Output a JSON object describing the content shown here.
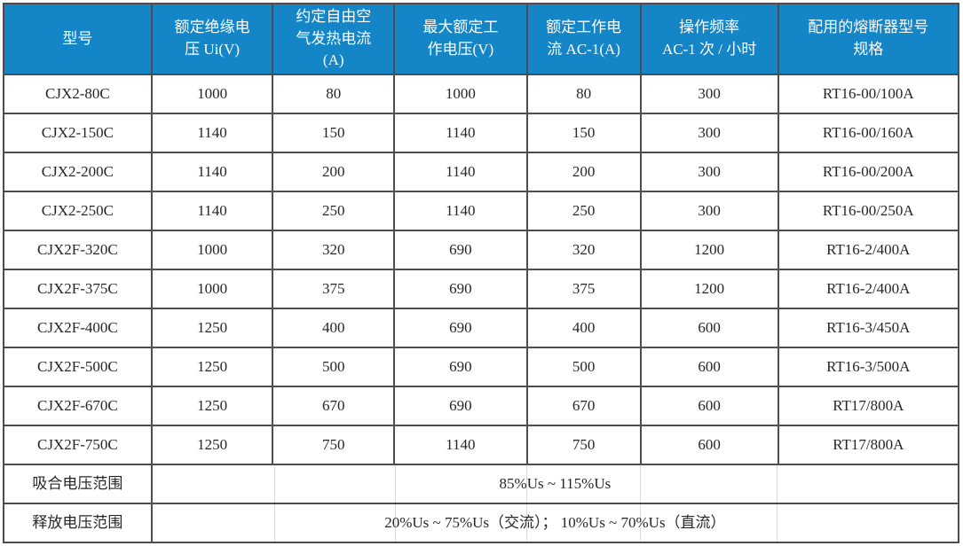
{
  "table": {
    "columns": [
      {
        "label": "型号"
      },
      {
        "label": "额定绝缘电\n压 Ui(V)"
      },
      {
        "label": "约定自由空\n气发热电流\n(A)"
      },
      {
        "label": "最大额定工\n作电压(V)"
      },
      {
        "label": "额定工作电\n流 AC-1(A)"
      },
      {
        "label": "操作频率\nAC-1 次 / 小时"
      },
      {
        "label": "配用的熔断器型号\n规格"
      }
    ],
    "rows": [
      [
        "CJX2-80C",
        "1000",
        "80",
        "1000",
        "80",
        "300",
        "RT16-00/100A"
      ],
      [
        "CJX2-150C",
        "1140",
        "150",
        "1140",
        "150",
        "300",
        "RT16-00/160A"
      ],
      [
        "CJX2-200C",
        "1140",
        "200",
        "1140",
        "200",
        "300",
        "RT16-00/200A"
      ],
      [
        "CJX2-250C",
        "1140",
        "250",
        "1140",
        "250",
        "300",
        "RT16-00/250A"
      ],
      [
        "CJX2F-320C",
        "1000",
        "320",
        "690",
        "320",
        "1200",
        "RT16-2/400A"
      ],
      [
        "CJX2F-375C",
        "1000",
        "375",
        "690",
        "375",
        "1200",
        "RT16-2/400A"
      ],
      [
        "CJX2F-400C",
        "1250",
        "400",
        "690",
        "400",
        "600",
        "RT16-3/450A"
      ],
      [
        "CJX2F-500C",
        "1250",
        "500",
        "690",
        "500",
        "600",
        "RT16-3/500A"
      ],
      [
        "CJX2F-670C",
        "1250",
        "670",
        "690",
        "670",
        "600",
        "RT17/800A"
      ],
      [
        "CJX2F-750C",
        "1250",
        "750",
        "1140",
        "750",
        "600",
        "RT17/800A"
      ]
    ],
    "summary_rows": [
      {
        "label": "吸合电压范围",
        "value": "85%Us ~ 115%Us"
      },
      {
        "label": "释放电压范围",
        "value": "20%Us ~ 75%Us（交流）； 10%Us ~ 70%Us（直流）"
      }
    ]
  },
  "colors": {
    "header_bg": "#1485C6",
    "header_text": "#FFFFFF",
    "border": "#4D4D4D",
    "body_text": "#262626",
    "faint_divider": "#D9D9D9"
  }
}
